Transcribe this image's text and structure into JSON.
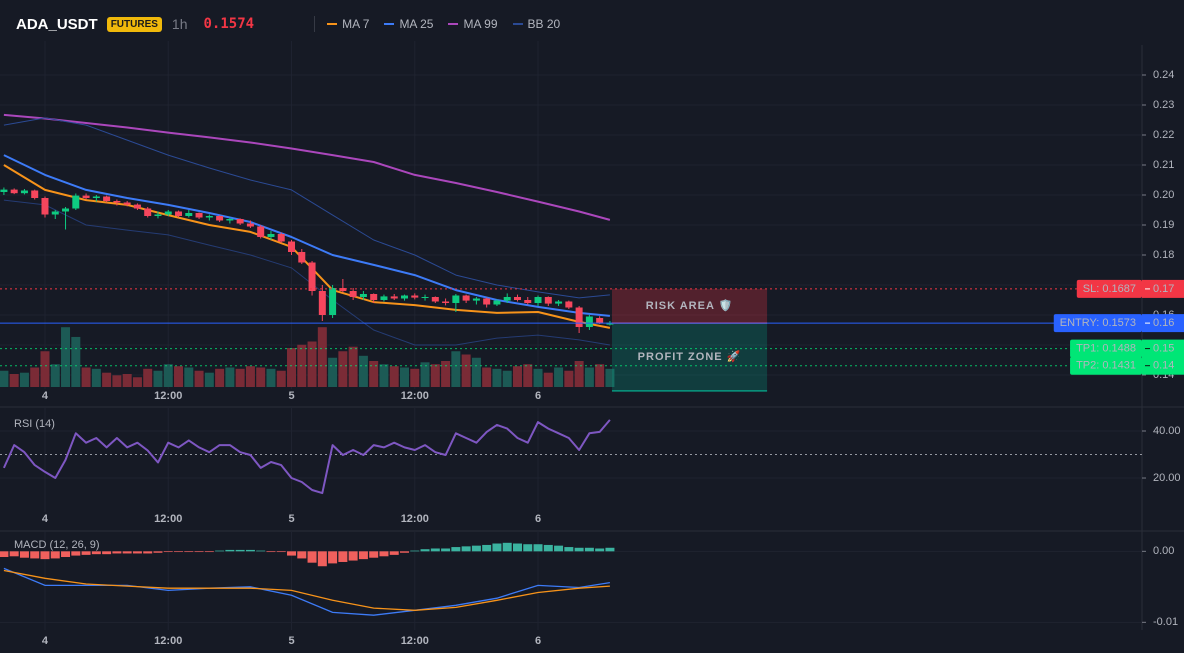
{
  "header": {
    "symbol": "ADA_USDT",
    "badge": "FUTURES",
    "interval": "1h",
    "price": "0.1574"
  },
  "chart_data": [
    {
      "type": "candlestick",
      "x": [
        -4,
        -3,
        -2,
        -1,
        0,
        1,
        2,
        3,
        4,
        5,
        6,
        7,
        8,
        9,
        10,
        11,
        12,
        13,
        14,
        15,
        16,
        17,
        18,
        19,
        20,
        21,
        22,
        23,
        24,
        25,
        26,
        27,
        28,
        29,
        30,
        31,
        32,
        33,
        34,
        35,
        36,
        37,
        38,
        39,
        40,
        41,
        42,
        43,
        44,
        45,
        46,
        47,
        48,
        49,
        50,
        51,
        52,
        53,
        54,
        55
      ],
      "candles": [
        [
          0.201,
          0.2025,
          0.2,
          0.2018
        ],
        [
          0.2018,
          0.2022,
          0.2003,
          0.2006
        ],
        [
          0.2006,
          0.202,
          0.2002,
          0.2015
        ],
        [
          0.2015,
          0.2018,
          0.1985,
          0.199
        ],
        [
          0.199,
          0.1995,
          0.1925,
          0.1935
        ],
        [
          0.1935,
          0.195,
          0.192,
          0.1945
        ],
        [
          0.1945,
          0.196,
          0.1885,
          0.1955
        ],
        [
          0.1955,
          0.2005,
          0.195,
          0.1998
        ],
        [
          0.1998,
          0.2005,
          0.1985,
          0.199
        ],
        [
          0.199,
          0.2,
          0.1978,
          0.1995
        ],
        [
          0.1995,
          0.1998,
          0.1975,
          0.198
        ],
        [
          0.198,
          0.1985,
          0.1965,
          0.1975
        ],
        [
          0.1975,
          0.198,
          0.1962,
          0.1968
        ],
        [
          0.1968,
          0.1972,
          0.195,
          0.1955
        ],
        [
          0.1955,
          0.196,
          0.1925,
          0.193
        ],
        [
          0.193,
          0.1945,
          0.1922,
          0.1935
        ],
        [
          0.1935,
          0.195,
          0.193,
          0.1945
        ],
        [
          0.1945,
          0.1948,
          0.1925,
          0.193
        ],
        [
          0.193,
          0.195,
          0.1925,
          0.194
        ],
        [
          0.194,
          0.1942,
          0.192,
          0.1925
        ],
        [
          0.1925,
          0.1935,
          0.1915,
          0.193
        ],
        [
          0.193,
          0.1932,
          0.191,
          0.1915
        ],
        [
          0.1915,
          0.1925,
          0.1905,
          0.192
        ],
        [
          0.192,
          0.1922,
          0.19,
          0.1905
        ],
        [
          0.1905,
          0.1915,
          0.189,
          0.1895
        ],
        [
          0.1895,
          0.19,
          0.1855,
          0.186
        ],
        [
          0.186,
          0.188,
          0.185,
          0.187
        ],
        [
          0.187,
          0.1875,
          0.184,
          0.1845
        ],
        [
          0.1845,
          0.185,
          0.18,
          0.181
        ],
        [
          0.181,
          0.182,
          0.177,
          0.1775
        ],
        [
          0.1775,
          0.178,
          0.1665,
          0.168
        ],
        [
          0.168,
          0.17,
          0.158,
          0.16
        ],
        [
          0.16,
          0.17,
          0.159,
          0.169
        ],
        [
          0.169,
          0.172,
          0.1675,
          0.168
        ],
        [
          0.168,
          0.169,
          0.165,
          0.166
        ],
        [
          0.166,
          0.168,
          0.165,
          0.167
        ],
        [
          0.167,
          0.1672,
          0.164,
          0.165
        ],
        [
          0.165,
          0.1668,
          0.1645,
          0.1662
        ],
        [
          0.1662,
          0.167,
          0.165,
          0.1655
        ],
        [
          0.1655,
          0.1668,
          0.1648,
          0.1665
        ],
        [
          0.1665,
          0.1672,
          0.1652,
          0.1658
        ],
        [
          0.1658,
          0.1668,
          0.1648,
          0.166
        ],
        [
          0.166,
          0.1662,
          0.164,
          0.1645
        ],
        [
          0.1645,
          0.1655,
          0.1632,
          0.164
        ],
        [
          0.164,
          0.167,
          0.161,
          0.1665
        ],
        [
          0.1665,
          0.1668,
          0.164,
          0.1648
        ],
        [
          0.1648,
          0.166,
          0.1635,
          0.1655
        ],
        [
          0.1655,
          0.1658,
          0.1625,
          0.1635
        ],
        [
          0.1635,
          0.1652,
          0.163,
          0.1648
        ],
        [
          0.1648,
          0.1672,
          0.164,
          0.166
        ],
        [
          0.166,
          0.1668,
          0.1645,
          0.165
        ],
        [
          0.165,
          0.166,
          0.1635,
          0.164
        ],
        [
          0.164,
          0.1665,
          0.163,
          0.166
        ],
        [
          0.166,
          0.1662,
          0.163,
          0.1638
        ],
        [
          0.1638,
          0.165,
          0.163,
          0.1645
        ],
        [
          0.1645,
          0.1648,
          0.162,
          0.1625
        ],
        [
          0.1625,
          0.163,
          0.154,
          0.156
        ],
        [
          0.156,
          0.16,
          0.155,
          0.1595
        ],
        [
          0.159,
          0.1596,
          0.157,
          0.1572
        ],
        [
          0.1568,
          0.158,
          0.1565,
          0.1574
        ]
      ],
      "up_color": "#0ecb81",
      "down_color": "#f6465d",
      "volume": [
        25,
        20,
        22,
        30,
        55,
        35,
        92,
        77,
        30,
        28,
        22,
        18,
        20,
        15,
        28,
        25,
        35,
        32,
        30,
        25,
        22,
        28,
        30,
        28,
        32,
        30,
        28,
        25,
        60,
        65,
        70,
        92,
        45,
        55,
        62,
        48,
        40,
        35,
        32,
        30,
        28,
        38,
        35,
        40,
        55,
        50,
        45,
        30,
        28,
        25,
        32,
        35,
        28,
        22,
        30,
        25,
        40,
        30,
        35,
        28
      ],
      "volume_up_color": "#1c5a55",
      "volume_down_color": "#7a2b36",
      "series": [
        {
          "name": "MA 7",
          "color": "#f7931a",
          "x": [
            -4,
            0,
            4,
            8,
            12,
            16,
            20,
            24,
            28,
            32,
            36,
            40,
            44,
            48,
            52,
            55
          ],
          "values": [
            0.21,
            0.2017,
            0.1983,
            0.1967,
            0.1933,
            0.19,
            0.1877,
            0.1827,
            0.1683,
            0.1643,
            0.1633,
            0.1617,
            0.1607,
            0.161,
            0.1577,
            0.1557
          ]
        },
        {
          "name": "MA 25",
          "color": "#3d7bf7",
          "x": [
            -4,
            0,
            4,
            8,
            12,
            16,
            20,
            24,
            28,
            32,
            36,
            40,
            44,
            48,
            52,
            55
          ],
          "values": [
            0.2133,
            0.2067,
            0.2017,
            0.199,
            0.1967,
            0.194,
            0.191,
            0.186,
            0.18,
            0.1767,
            0.1733,
            0.1683,
            0.165,
            0.1627,
            0.1607,
            0.1597
          ]
        },
        {
          "name": "MA 99",
          "color": "#ab47bc",
          "x": [
            -4,
            0,
            4,
            8,
            12,
            16,
            20,
            24,
            28,
            32,
            36,
            40,
            44,
            48,
            52,
            55
          ],
          "values": [
            0.2267,
            0.2255,
            0.224,
            0.2225,
            0.2208,
            0.2192,
            0.2175,
            0.2155,
            0.2133,
            0.211,
            0.2067,
            0.204,
            0.201,
            0.1978,
            0.1945,
            0.1917
          ]
        },
        {
          "name": "BB 20",
          "color": "#2b4a94",
          "x": [
            -4,
            0,
            4,
            8,
            12,
            16,
            20,
            24,
            28,
            32,
            36,
            40,
            44,
            48,
            52,
            55
          ],
          "values": [
            0.2233,
            0.2257,
            0.2233,
            0.2183,
            0.2133,
            0.209,
            0.205,
            0.2017,
            0.1933,
            0.185,
            0.18,
            0.1733,
            0.17,
            0.1677,
            0.1657,
            0.1667
          ],
          "lower": [
            0.1983,
            0.1967,
            0.19,
            0.1883,
            0.1867,
            0.1833,
            0.18,
            0.1757,
            0.165,
            0.155,
            0.15,
            0.15,
            0.1523,
            0.1533,
            0.1517,
            0.15
          ]
        }
      ],
      "xlim": [
        -4.38,
        106.8
      ],
      "xticks": [
        {
          "value": 0,
          "label": "4"
        },
        {
          "value": 12,
          "label": "12:00"
        },
        {
          "value": 24,
          "label": "5"
        },
        {
          "value": 36,
          "label": "12:00"
        },
        {
          "value": 48,
          "label": "6"
        }
      ],
      "ylim": [
        0.136,
        0.25
      ],
      "yticks": [
        0.14,
        0.15,
        0.16,
        0.17,
        0.18,
        0.19,
        {
          "value": 0.2,
          "label": "0.20"
        },
        0.21,
        0.22,
        0.23,
        0.24
      ],
      "grid": true,
      "levels": [
        {
          "label": "SL: 0.1687",
          "value": 0.1687,
          "axis_label": "0.17",
          "color": "#f23645",
          "label_text_color": "#ffffff",
          "dashed": true
        },
        {
          "label": "ENTRY: 0.1573",
          "value": 0.1573,
          "axis_label": "0.16",
          "color": "#2962ff",
          "label_text_color": "#ffffff",
          "dashed": false
        },
        {
          "label": "TP1: 0.1488",
          "value": 0.1488,
          "axis_label": "0.15",
          "color": "#00e676",
          "label_text_color": "#0b1a10",
          "dashed": true
        },
        {
          "label": "TP2: 0.1431",
          "value": 0.1431,
          "axis_label": "0.14",
          "color": "#00e676",
          "label_text_color": "#0b1a10",
          "dashed": true
        }
      ],
      "zones": [
        {
          "label": "RISK AREA 🛡️",
          "from": 0.1687,
          "to": 0.1573,
          "x": [
            55.2,
            70.3
          ],
          "color": "#f23645",
          "text_color": "#f23645"
        },
        {
          "label": "PROFIT ZONE 🚀",
          "from": 0.1573,
          "to": 0.1347,
          "x": [
            55.2,
            70.3
          ],
          "color": "#089981",
          "text_color": "#26d07c"
        }
      ]
    },
    {
      "type": "line",
      "title": "RSI (14)",
      "series": [
        {
          "color": "#7e57c2",
          "values": [
            24.3,
            34,
            31,
            25.5,
            22.6,
            20,
            27.7,
            39,
            35,
            37,
            33,
            37,
            33,
            35,
            31.7,
            26.6,
            35,
            33,
            36,
            33,
            31,
            34,
            34,
            31,
            29.8,
            24.3,
            26.8,
            25.5,
            20,
            18.3,
            14.9,
            13.6,
            34,
            29.8,
            31.9,
            29.8,
            34,
            33,
            35,
            33,
            31.9,
            34,
            31,
            29.8,
            39,
            37,
            35,
            39.6,
            42.6,
            41,
            37,
            35,
            43.8,
            41,
            39,
            37,
            31.9,
            39,
            39.6,
            44.7
          ]
        }
      ],
      "ylim": [
        6.4,
        48.5
      ],
      "yticks": [
        {
          "value": 40,
          "label": "40.00"
        },
        {
          "value": 20,
          "label": "20.00"
        }
      ],
      "reference_lines": [
        30
      ]
    },
    {
      "type": "macd",
      "title": "MACD (12, 26, 9)",
      "histogram": [
        -0.0008,
        -0.0007,
        -0.0009,
        -0.001,
        -0.0011,
        -0.001,
        -0.0008,
        -0.0006,
        -0.0005,
        -0.0004,
        -0.0004,
        -0.0003,
        -0.0003,
        -0.0003,
        -0.0003,
        -0.0002,
        -0.0001,
        -0.0001,
        -0.0001,
        -0.0001,
        -0.0001,
        0.0001,
        0.0002,
        0.0002,
        0.0002,
        0.0001,
        -0.0001,
        -0.0001,
        -0.0006,
        -0.001,
        -0.0016,
        -0.0021,
        -0.0017,
        -0.0015,
        -0.0013,
        -0.0011,
        -0.0009,
        -0.0007,
        -0.0005,
        -0.0002,
        0.0001,
        0.0003,
        0.0004,
        0.0004,
        0.0006,
        0.0007,
        0.0008,
        0.0009,
        0.0011,
        0.0012,
        0.0011,
        0.001,
        0.001,
        0.0009,
        0.0008,
        0.0006,
        0.0005,
        0.0005,
        0.0004,
        0.0005
      ],
      "pos_color": "#3bb3a0",
      "neg_color": "#f0605d",
      "series": [
        {
          "color": "#3d7bf7",
          "x": [
            -4,
            0,
            4,
            8,
            12,
            16,
            20,
            24,
            28,
            32,
            36,
            40,
            44,
            48,
            52,
            55
          ],
          "values": [
            -0.0024,
            -0.0048,
            -0.0048,
            -0.0048,
            -0.0055,
            -0.0052,
            -0.005,
            -0.0062,
            -0.0086,
            -0.009,
            -0.0083,
            -0.0076,
            -0.0066,
            -0.0048,
            -0.0051,
            -0.0044
          ]
        },
        {
          "color": "#f7931a",
          "x": [
            -4,
            0,
            4,
            8,
            12,
            16,
            20,
            24,
            28,
            32,
            36,
            40,
            44,
            48,
            52,
            55
          ],
          "values": [
            -0.0027,
            -0.0038,
            -0.0046,
            -0.0049,
            -0.0052,
            -0.0052,
            -0.0052,
            -0.0055,
            -0.0069,
            -0.008,
            -0.0083,
            -0.0079,
            -0.0069,
            -0.0058,
            -0.0052,
            -0.0049
          ]
        }
      ],
      "ylim": [
        -0.0108,
        0.0023
      ],
      "yticks": [
        {
          "value": 0,
          "label": "0.00"
        },
        {
          "value": -0.01,
          "label": "-0.01"
        }
      ]
    }
  ]
}
